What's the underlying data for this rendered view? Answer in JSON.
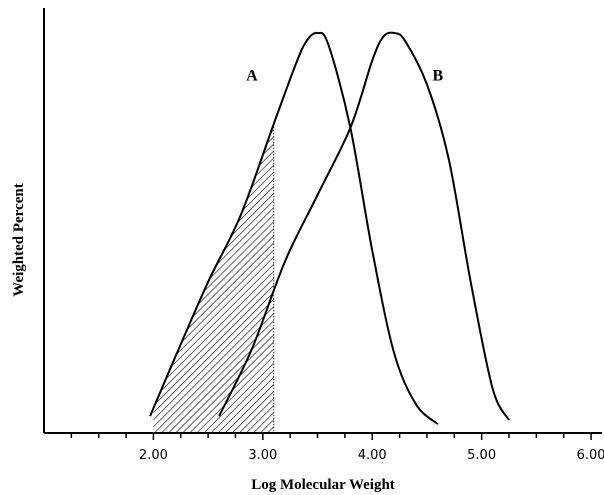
{
  "chart_data": {
    "type": "line",
    "title": "",
    "xlabel": "Log Molecular Weight",
    "ylabel": "Weighted Percent",
    "xlim": [
      1.0,
      6.1
    ],
    "ylim": [
      0,
      100
    ],
    "x_ticks": [
      2.0,
      3.0,
      4.0,
      5.0,
      6.0
    ],
    "x_tick_labels": [
      "2.00",
      "3.00",
      "4.00",
      "5.00",
      "6.00"
    ],
    "minor_tick_step": 0.25,
    "y_ticks_shown": false,
    "grid": false,
    "legend": "none",
    "shaded_region": {
      "series": "A",
      "x_from": 2.0,
      "x_to": 3.1,
      "fill": "hatched"
    },
    "series": [
      {
        "name": "A",
        "label_position": [
          2.9,
          88
        ],
        "points": [
          [
            1.97,
            3
          ],
          [
            2.2,
            18
          ],
          [
            2.5,
            37
          ],
          [
            2.8,
            54
          ],
          [
            3.1,
            77
          ],
          [
            3.3,
            92
          ],
          [
            3.4,
            98
          ],
          [
            3.5,
            100
          ],
          [
            3.6,
            97
          ],
          [
            3.8,
            76
          ],
          [
            4.0,
            45
          ],
          [
            4.2,
            19
          ],
          [
            4.4,
            6
          ],
          [
            4.6,
            1
          ]
        ]
      },
      {
        "name": "B",
        "label_position": [
          4.6,
          88
        ],
        "points": [
          [
            2.6,
            3
          ],
          [
            2.9,
            20
          ],
          [
            3.2,
            42
          ],
          [
            3.5,
            59
          ],
          [
            3.8,
            76
          ],
          [
            4.0,
            93
          ],
          [
            4.1,
            99
          ],
          [
            4.2,
            100
          ],
          [
            4.3,
            98
          ],
          [
            4.5,
            87
          ],
          [
            4.7,
            68
          ],
          [
            4.9,
            37
          ],
          [
            5.1,
            10
          ],
          [
            5.25,
            2
          ]
        ]
      }
    ]
  }
}
